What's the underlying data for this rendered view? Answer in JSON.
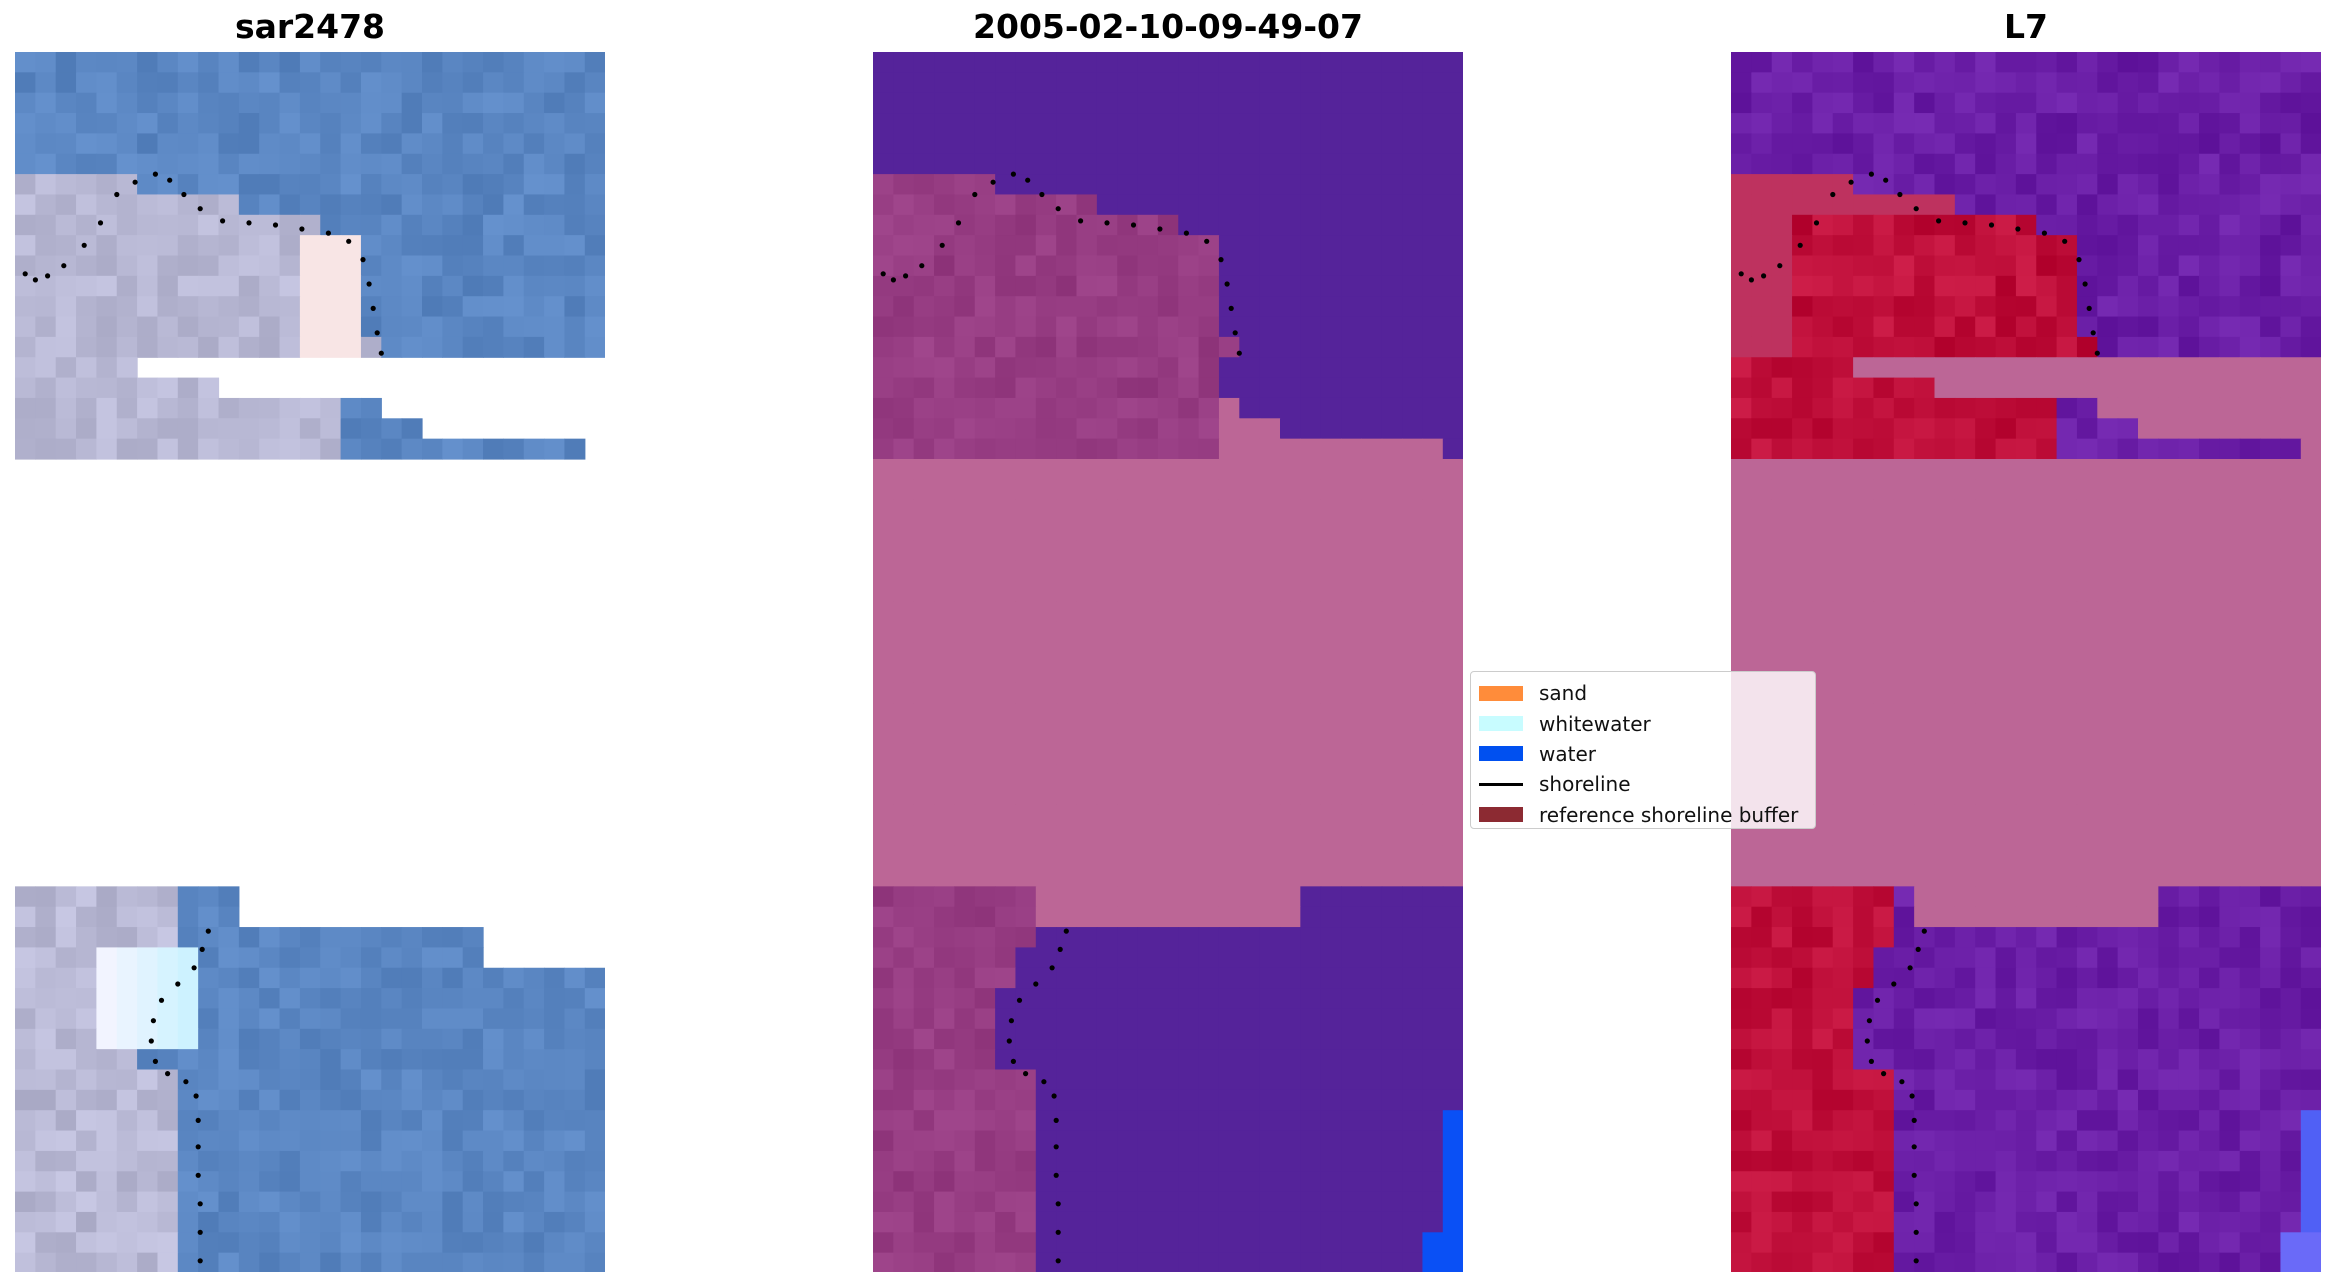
{
  "panels": [
    {
      "title": "sar2478"
    },
    {
      "title": "2005-02-10-09-49-07"
    },
    {
      "title": "L7"
    }
  ],
  "legend": {
    "items": [
      {
        "label": "sand",
        "color": "#ff8c3a",
        "kind": "patch",
        "icon": "sand-swatch-icon"
      },
      {
        "label": "whitewater",
        "color": "#c8fcff",
        "kind": "patch",
        "icon": "whitewater-swatch-icon"
      },
      {
        "label": "water",
        "color": "#0050f0",
        "kind": "patch",
        "icon": "water-swatch-icon"
      },
      {
        "label": "shoreline",
        "color": "#000000",
        "kind": "line",
        "icon": "shoreline-line-icon"
      },
      {
        "label": "reference shoreline buffer",
        "color": "#8c2a32",
        "kind": "patch",
        "icon": "buffer-swatch-icon"
      }
    ]
  },
  "colors": {
    "rgb_water": "#5a86c2",
    "rgb_sand": "#b8b8d4",
    "classified_water": "#55239a",
    "classified_sand": "#963c82",
    "buffer_overlay": "#bc6696",
    "pure_water": "#0a50f5",
    "mndwi_water": "#6a1ea6",
    "mndwi_sand": "#bf0f3a",
    "shoreline_dots": "#000000"
  }
}
